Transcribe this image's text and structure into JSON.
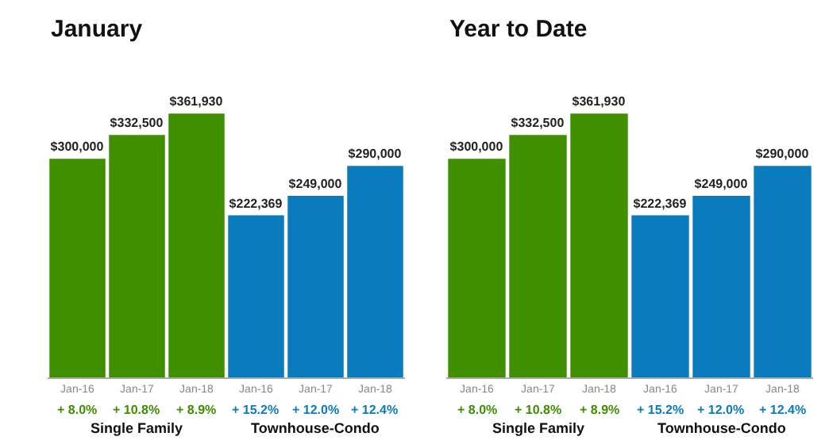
{
  "chart_data": [
    {
      "type": "bar",
      "title": "January",
      "categories": [
        "Jan-16",
        "Jan-17",
        "Jan-18",
        "Jan-16",
        "Jan-17",
        "Jan-18"
      ],
      "values": [
        300000,
        332500,
        361930,
        222369,
        249000,
        290000
      ],
      "colors": [
        "#3f8f00",
        "#3f8f00",
        "#3f8f00",
        "#0a7bbd",
        "#0a7bbd",
        "#0a7bbd"
      ],
      "value_labels": [
        "$300,000",
        "$332,500",
        "$361,930",
        "$222,369",
        "$249,000",
        "$290,000"
      ],
      "annotations": [
        "+ 8.0%",
        "+ 10.8%",
        "+ 8.9%",
        "+ 15.2%",
        "+ 12.0%",
        "+ 12.4%",
        "Single Family",
        "Townhouse-Condo"
      ]
    },
    {
      "type": "bar",
      "title": "Year to Date",
      "categories": [
        "Jan-16",
        "Jan-17",
        "Jan-18",
        "Jan-16",
        "Jan-17",
        "Jan-18"
      ],
      "values": [
        300000,
        332500,
        361930,
        222369,
        249000,
        290000
      ],
      "colors": [
        "#3f8f00",
        "#3f8f00",
        "#3f8f00",
        "#0a7bbd",
        "#0a7bbd",
        "#0a7bbd"
      ],
      "value_labels": [
        "$300,000",
        "$332,500",
        "$361,930",
        "$222,369",
        "$249,000",
        "$290,000"
      ],
      "annotations": [
        "+ 8.0%",
        "+ 10.8%",
        "+ 8.9%",
        "+ 15.2%",
        "+ 12.0%",
        "+ 12.4%",
        "Single Family",
        "Townhouse-Condo"
      ]
    }
  ]
}
